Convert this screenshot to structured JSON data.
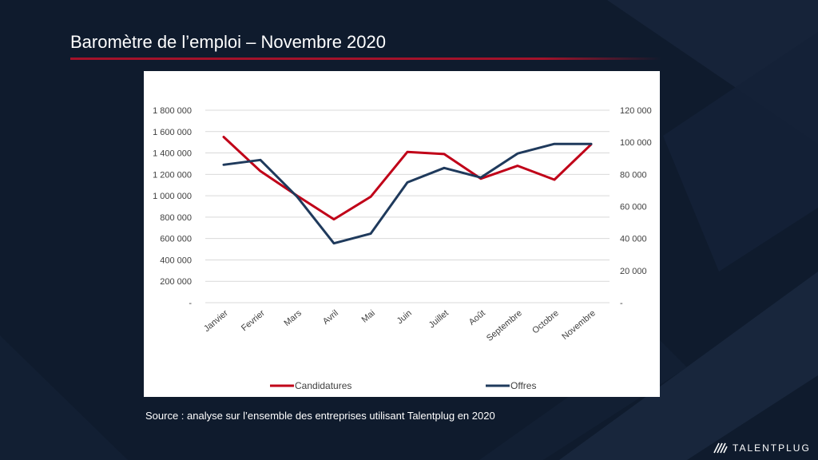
{
  "header": {
    "title": "Baromètre de l’emploi – Novembre 2020"
  },
  "source": "Source : analyse sur l’ensemble des entreprises utilisant Talentplug en 2020",
  "logo": {
    "text": "TALENTPLUG"
  },
  "colors": {
    "background": "#0f1b2d",
    "accent": "#a3122a",
    "candidatures": "#c00018",
    "offres": "#1f3a5c",
    "grid": "#d9d9d9"
  },
  "chart_data": {
    "type": "line",
    "categories": [
      "Janvier",
      "Fevrier",
      "Mars",
      "Avril",
      "Mai",
      "Juin",
      "Juillet",
      "Août",
      "Septembre",
      "Octobre",
      "Novembre"
    ],
    "series": [
      {
        "name": "Candidatures",
        "axis": "left",
        "values": [
          1550000,
          1230000,
          1000000,
          780000,
          990000,
          1410000,
          1390000,
          1160000,
          1280000,
          1150000,
          1480000
        ]
      },
      {
        "name": "Offres",
        "axis": "right",
        "values": [
          86000,
          89000,
          66000,
          37000,
          43000,
          75000,
          84000,
          78000,
          93000,
          99000,
          99000
        ]
      }
    ],
    "y_left": {
      "min": 0,
      "max": 1800000,
      "ticks": [
        0,
        200000,
        400000,
        600000,
        800000,
        1000000,
        1200000,
        1400000,
        1600000,
        1800000
      ],
      "tick_labels": [
        "-",
        "200 000",
        "400 000",
        "600 000",
        "800 000",
        "1 000 000",
        "1 200 000",
        "1 400 000",
        "1 600 000",
        "1 800 000"
      ]
    },
    "y_right": {
      "min": 0,
      "max": 120000,
      "ticks": [
        0,
        20000,
        40000,
        60000,
        80000,
        100000,
        120000
      ],
      "tick_labels": [
        "-",
        "20 000",
        "40 000",
        "60 000",
        "80 000",
        "100 000",
        "120 000"
      ]
    },
    "grid": true,
    "legend_position": "bottom"
  }
}
